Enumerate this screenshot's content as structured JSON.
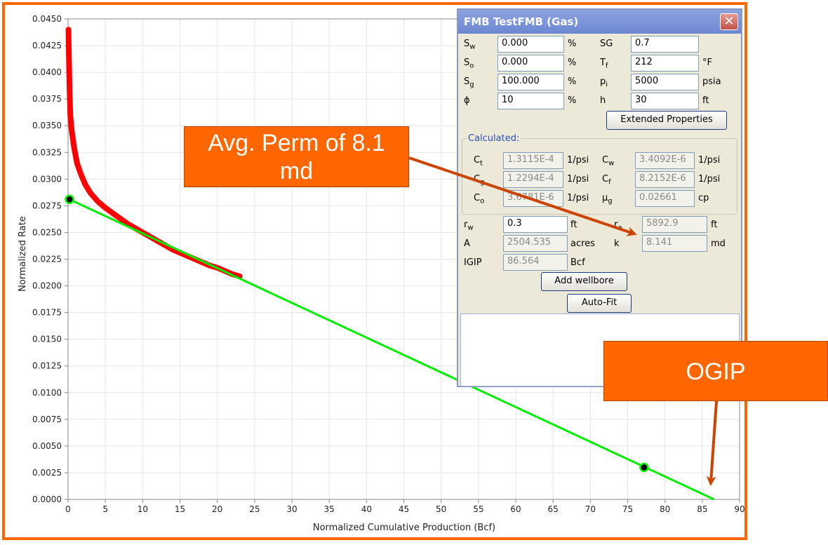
{
  "chart_data": {
    "type": "scatter",
    "xlabel": "Normalized Cumulative Production (Bcf)",
    "ylabel": "Normalized Rate",
    "xlim": [
      0,
      90
    ],
    "ylim": [
      0,
      0.045
    ],
    "x_ticks": [
      "0",
      "5",
      "10",
      "15",
      "20",
      "25",
      "30",
      "35",
      "40",
      "45",
      "50",
      "55",
      "60",
      "65",
      "70",
      "75",
      "80",
      "85",
      "90"
    ],
    "y_ticks": [
      "0.0000",
      "0.0025",
      "0.0050",
      "0.0075",
      "0.0100",
      "0.0125",
      "0.0150",
      "0.0175",
      "0.0200",
      "0.0225",
      "0.0250",
      "0.0275",
      "0.0300",
      "0.0325",
      "0.0350",
      "0.0375",
      "0.0400",
      "0.0425",
      "0.0450"
    ],
    "series": [
      {
        "color": "#ff0000",
        "x": [
          0.05,
          0.1,
          0.2,
          0.3,
          0.5,
          0.8,
          1.2,
          1.7,
          2.3,
          3,
          4,
          5,
          6,
          7,
          8,
          9,
          10,
          11,
          12,
          13,
          14,
          15,
          16,
          17,
          18,
          19,
          20,
          21,
          22,
          23
        ],
        "y": [
          0.044,
          0.042,
          0.0385,
          0.036,
          0.0345,
          0.033,
          0.0315,
          0.0305,
          0.0295,
          0.0287,
          0.0279,
          0.0273,
          0.0268,
          0.0263,
          0.0258,
          0.0254,
          0.025,
          0.0246,
          0.0242,
          0.0238,
          0.0234,
          0.0231,
          0.0228,
          0.0225,
          0.0222,
          0.0219,
          0.0217,
          0.0214,
          0.0211,
          0.0209
        ]
      },
      {
        "color": "#00ee00",
        "x": [
          0.2,
          86.6
        ],
        "y": [
          0.0281,
          0.0
        ]
      }
    ],
    "fit_points": [
      {
        "x": 0.2,
        "y": 0.0281
      },
      {
        "x": 77.2,
        "y": 0.003
      }
    ],
    "grid": true
  },
  "dialog": {
    "title": "FMB TestFMB (Gas)",
    "close_glyph": "✕",
    "sw": {
      "sym": "S",
      "sub": "w",
      "value": "0.000",
      "unit": "%"
    },
    "so": {
      "sym": "S",
      "sub": "o",
      "value": "0.000",
      "unit": "%"
    },
    "sg": {
      "sym": "S",
      "sub": "g",
      "value": "100.000",
      "unit": "%"
    },
    "phi": {
      "sym": "ϕ",
      "value": "10",
      "unit": "%"
    },
    "SG": {
      "sym": "SG",
      "value": "0.7",
      "unit": ""
    },
    "tf": {
      "sym": "T",
      "sub": "f",
      "value": "212",
      "unit": "°F"
    },
    "pi": {
      "sym": "p",
      "sub": "i",
      "value": "5000",
      "unit": "psia"
    },
    "h": {
      "sym": "h",
      "value": "30",
      "unit": "ft"
    },
    "extended_properties": "Extended Properties",
    "calculated_title": "Calculated:",
    "ct": {
      "sym": "C",
      "sub": "t",
      "value": "1.3115E-4",
      "unit": "1/psi"
    },
    "cg": {
      "sym": "C",
      "sub": "g",
      "value": "1.2294E-4",
      "unit": "1/psi"
    },
    "co": {
      "sym": "C",
      "sub": "o",
      "value": "3.6781E-6",
      "unit": "1/psi"
    },
    "cw": {
      "sym": "C",
      "sub": "w",
      "value": "3.4092E-6",
      "unit": "1/psi"
    },
    "cf": {
      "sym": "C",
      "sub": "f",
      "value": "8.2152E-6",
      "unit": "1/psi"
    },
    "mug": {
      "sym": "μ",
      "sub": "g",
      "value": "0.02661",
      "unit": "cp"
    },
    "rw": {
      "sym": "r",
      "sub": "w",
      "value": "0.3",
      "unit": "ft"
    },
    "re": {
      "sym": "r",
      "sub": "e",
      "value": "5892.9",
      "unit": "ft"
    },
    "A": {
      "sym": "A",
      "value": "2504.535",
      "unit": "acres"
    },
    "k": {
      "sym": "k",
      "value": "8.141",
      "unit": "md"
    },
    "igip": {
      "sym": "IGIP",
      "value": "86.564",
      "unit": "Bcf"
    },
    "add_wellbore": "Add wellbore",
    "auto_fit": "Auto-Fit"
  },
  "callouts": {
    "perm_line1": "Avg. Perm of 8.1",
    "perm_line2": "md",
    "ogip": "OGIP",
    "color": "#ff6600",
    "arrow_color": "#cc4400"
  }
}
